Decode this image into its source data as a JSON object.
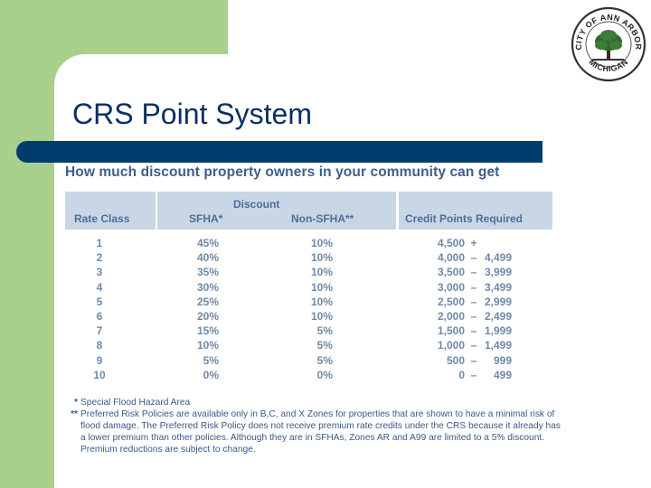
{
  "slide": {
    "title": "CRS Point System"
  },
  "seal": {
    "text_top": "CITY OF ANN ARBOR",
    "text_bottom": "MICHIGAN"
  },
  "table": {
    "heading": "How much discount property owners in your community can get",
    "discount_group": "Discount",
    "columns": {
      "rate_class": "Rate Class",
      "sfha": "SFHA*",
      "non_sfha": "Non-SFHA**",
      "credit_points": "Credit Points Required"
    },
    "rows": [
      {
        "rate_class": "1",
        "sfha": "45%",
        "non_sfha": "10%",
        "points_low": "4,500",
        "separator": "+",
        "points_high": ""
      },
      {
        "rate_class": "2",
        "sfha": "40%",
        "non_sfha": "10%",
        "points_low": "4,000",
        "separator": "–",
        "points_high": "4,499"
      },
      {
        "rate_class": "3",
        "sfha": "35%",
        "non_sfha": "10%",
        "points_low": "3,500",
        "separator": "–",
        "points_high": "3,999"
      },
      {
        "rate_class": "4",
        "sfha": "30%",
        "non_sfha": "10%",
        "points_low": "3,000",
        "separator": "–",
        "points_high": "3,499"
      },
      {
        "rate_class": "5",
        "sfha": "25%",
        "non_sfha": "10%",
        "points_low": "2,500",
        "separator": "–",
        "points_high": "2,999"
      },
      {
        "rate_class": "6",
        "sfha": "20%",
        "non_sfha": "10%",
        "points_low": "2,000",
        "separator": "–",
        "points_high": "2,499"
      },
      {
        "rate_class": "7",
        "sfha": "15%",
        "non_sfha": "5%",
        "points_low": "1,500",
        "separator": "–",
        "points_high": "1,999"
      },
      {
        "rate_class": "8",
        "sfha": "10%",
        "non_sfha": "5%",
        "points_low": "1,000",
        "separator": "–",
        "points_high": "1,499"
      },
      {
        "rate_class": "9",
        "sfha": "5%",
        "non_sfha": "5%",
        "points_low": "500",
        "separator": "–",
        "points_high": "999"
      },
      {
        "rate_class": "10",
        "sfha": "0%",
        "non_sfha": "0%",
        "points_low": "0",
        "separator": "–",
        "points_high": "499"
      }
    ]
  },
  "footnotes": [
    {
      "mark": "*",
      "text": "Special Flood Hazard Area"
    },
    {
      "mark": "**",
      "text": "Preferred Risk Policies are available only in B,C, and X Zones for properties that are shown to have a minimal risk of flood damage. The Preferred Risk Policy does not receive premium rate credits under the CRS because it already has a lower premium than other policies. Although they are in SFHAs, Zones AR and A99 are limited to a 5% discount. Premium reductions are subject to change."
    }
  ],
  "colors": {
    "background_green": "#a9cf8d",
    "title_bar": "#003c6e",
    "title_text": "#0c2f63",
    "header_band": "#c9d6e6",
    "table_text": "#7088a8"
  }
}
